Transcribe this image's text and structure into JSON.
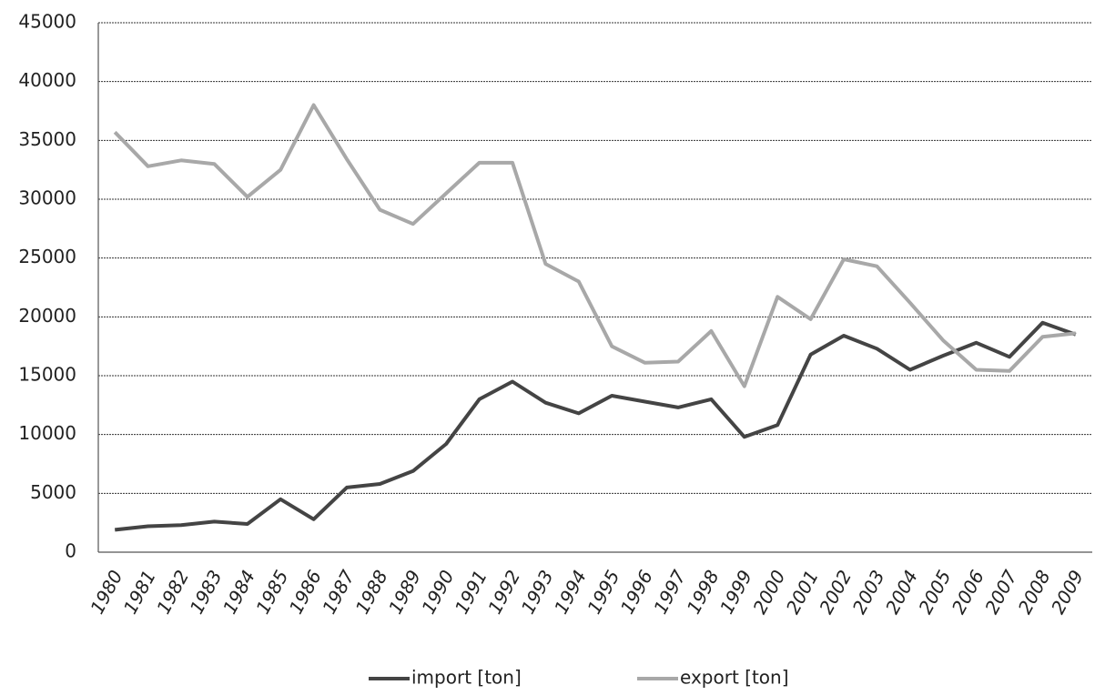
{
  "chart_data": {
    "type": "line",
    "categories": [
      "1980",
      "1981",
      "1982",
      "1983",
      "1984",
      "1985",
      "1986",
      "1987",
      "1988",
      "1989",
      "1990",
      "1991",
      "1992",
      "1993",
      "1994",
      "1995",
      "1996",
      "1997",
      "1998",
      "1999",
      "2000",
      "2001",
      "2002",
      "2003",
      "2004",
      "2005",
      "2006",
      "2007",
      "2008",
      "2009"
    ],
    "series": [
      {
        "name": "import [ton]",
        "color": "#444444",
        "values": [
          1900,
          2200,
          2300,
          2600,
          2400,
          4500,
          2800,
          5500,
          5800,
          6900,
          9200,
          13000,
          14500,
          12700,
          11800,
          13300,
          12800,
          12300,
          13000,
          9800,
          10800,
          16800,
          18400,
          17300,
          15500,
          16700,
          17800,
          16600,
          19500,
          18500
        ]
      },
      {
        "name": "export [ton]",
        "color": "#a8a8a8",
        "values": [
          35700,
          32800,
          33300,
          33000,
          30200,
          32500,
          38000,
          33400,
          29100,
          27900,
          30500,
          33100,
          33100,
          24500,
          23000,
          17500,
          16100,
          16200,
          18800,
          14100,
          21700,
          19800,
          24900,
          24300,
          21200,
          18000,
          15500,
          15400,
          18300,
          18600
        ]
      }
    ],
    "ylim": [
      0,
      45000
    ],
    "yticks": [
      0,
      5000,
      10000,
      15000,
      20000,
      25000,
      30000,
      35000,
      40000,
      45000
    ],
    "grid": true,
    "legend": "bottom"
  }
}
